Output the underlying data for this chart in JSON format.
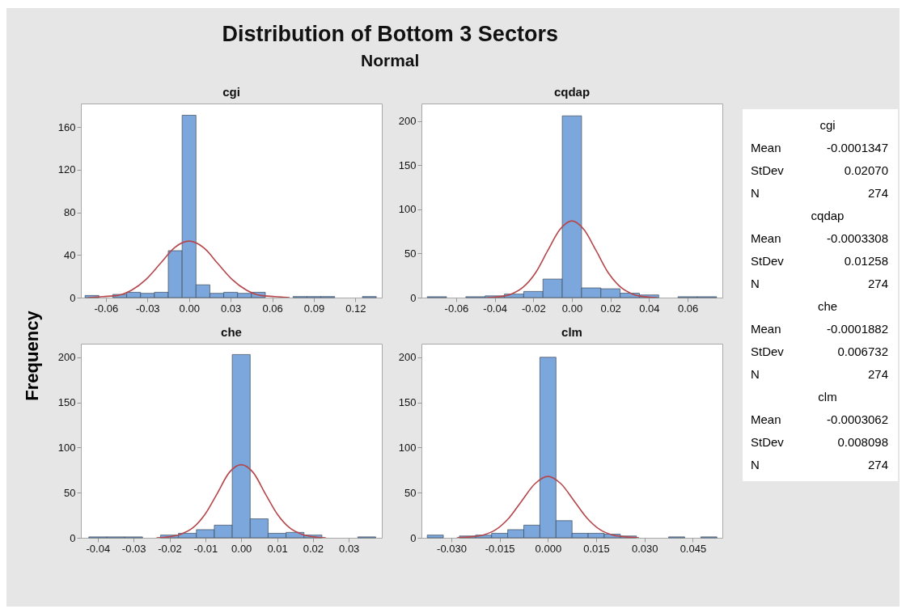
{
  "chart_data": [
    {
      "type": "other",
      "title": "Distribution of Bottom 3 Sectors",
      "subtitle": "Normal",
      "ylabel": "Frequency",
      "annotations": [
        "cgi",
        "Mean",
        "-0.0001347",
        "StDev",
        "0.02070",
        "N",
        "274",
        "cqdap",
        "Mean",
        "-0.0003308",
        "StDev",
        "0.01258",
        "N",
        "274",
        "che",
        "Mean",
        "-0.0001882",
        "StDev",
        "0.006732",
        "N",
        "274",
        "clm",
        "Mean",
        "-0.0003062",
        "StDev",
        "0.008098",
        "N",
        "274"
      ]
    },
    {
      "type": "histogram",
      "title": "cgi",
      "color": "#7ba7dc",
      "bins": [
        -0.075,
        -0.065,
        -0.055,
        -0.045,
        -0.035,
        -0.025,
        -0.015,
        -0.005,
        0.005,
        0.015,
        0.025,
        0.035,
        0.045,
        0.055,
        0.065,
        0.075,
        0.085,
        0.095,
        0.105,
        0.115,
        0.125,
        0.135
      ],
      "values": [
        2,
        0,
        3,
        5,
        4,
        5,
        44,
        171,
        12,
        4,
        5,
        4,
        5,
        0,
        0,
        1,
        1,
        1,
        0,
        0,
        1
      ],
      "series": [
        {
          "type": "line",
          "color": "#b5474c",
          "x": [
            -0.0725,
            -0.0621,
            -0.0518,
            -0.0414,
            -0.0311,
            -0.0207,
            -0.0104,
            0,
            0.0104,
            0.0207,
            0.0311,
            0.0414,
            0.0518,
            0.0621,
            0.0725
          ],
          "values": [
            0,
            1,
            2,
            7,
            17,
            32,
            47,
            53,
            47,
            32,
            17,
            7,
            2,
            1,
            0
          ]
        }
      ],
      "xlim": [
        -0.078,
        0.139
      ],
      "xticks": [
        -0.06,
        -0.03,
        {
          "value": 0,
          "label": "0.00"
        },
        0.03,
        0.06,
        0.09,
        0.12
      ],
      "ylim": [
        0,
        182
      ],
      "yticks": [
        0,
        40,
        80,
        120,
        160
      ]
    },
    {
      "type": "histogram",
      "title": "cqdap",
      "color": "#7ba7dc",
      "bins": [
        -0.075,
        -0.065,
        -0.055,
        -0.045,
        -0.035,
        -0.025,
        -0.015,
        -0.005,
        0.005,
        0.015,
        0.025,
        0.035,
        0.045,
        0.055,
        0.065,
        0.075
      ],
      "values": [
        1,
        0,
        1,
        2,
        4,
        7,
        21,
        206,
        11,
        10,
        5,
        3,
        0,
        1,
        1
      ],
      "series": [
        {
          "type": "line",
          "color": "#b5474c",
          "x": [
            -0.044,
            -0.0377,
            -0.0315,
            -0.0252,
            -0.0189,
            -0.0126,
            -0.0063,
            0,
            0.0063,
            0.0126,
            0.0189,
            0.0252,
            0.0315,
            0.0377,
            0.044
          ],
          "values": [
            0,
            1,
            4,
            12,
            28,
            53,
            77,
            87,
            77,
            53,
            28,
            12,
            4,
            1,
            0
          ]
        }
      ],
      "xlim": [
        -0.078,
        0.078
      ],
      "xticks": [
        -0.06,
        -0.04,
        -0.02,
        {
          "value": 0,
          "label": "0.00"
        },
        0.02,
        0.04,
        0.06
      ],
      "ylim": [
        0,
        220
      ],
      "yticks": [
        0,
        50,
        100,
        150,
        200
      ]
    },
    {
      "type": "histogram",
      "title": "che",
      "color": "#7ba7dc",
      "bins": [
        -0.0425,
        -0.0375,
        -0.0325,
        -0.0275,
        -0.0225,
        -0.0175,
        -0.0125,
        -0.0075,
        -0.0025,
        0.0025,
        0.0075,
        0.0125,
        0.0175,
        0.0225,
        0.0275,
        0.0325,
        0.0375
      ],
      "values": [
        1,
        1,
        1,
        0,
        3,
        5,
        9,
        14,
        203,
        21,
        5,
        6,
        3,
        0,
        0,
        1
      ],
      "series": [
        {
          "type": "line",
          "color": "#b5474c",
          "x": [
            -0.0236,
            -0.0202,
            -0.0168,
            -0.0135,
            -0.0101,
            -0.0067,
            -0.0034,
            0,
            0.0034,
            0.0067,
            0.0101,
            0.0135,
            0.0168,
            0.0202,
            0.0236
          ],
          "values": [
            0,
            1,
            4,
            11,
            26,
            49,
            72,
            81,
            72,
            49,
            26,
            11,
            4,
            1,
            0
          ]
        }
      ],
      "xlim": [
        -0.0447,
        0.0392
      ],
      "xticks": [
        -0.04,
        -0.03,
        -0.02,
        -0.01,
        {
          "value": 0,
          "label": "0.00"
        },
        0.01,
        0.02,
        0.03
      ],
      "ylim": [
        0,
        215
      ],
      "yticks": [
        0,
        50,
        100,
        150,
        200
      ]
    },
    {
      "type": "histogram",
      "title": "clm",
      "color": "#7ba7dc",
      "bins": [
        -0.0375,
        -0.0325,
        -0.0275,
        -0.0225,
        -0.0175,
        -0.0125,
        -0.0075,
        -0.0025,
        0.0025,
        0.0075,
        0.0125,
        0.0175,
        0.0225,
        0.0275,
        0.0325,
        0.0375,
        0.0425,
        0.0475,
        0.0525
      ],
      "values": [
        3,
        0,
        2,
        3,
        5,
        9,
        14,
        200,
        19,
        5,
        5,
        4,
        2,
        0,
        0,
        1,
        0,
        1
      ],
      "series": [
        {
          "type": "line",
          "color": "#b5474c",
          "x": [
            -0.0283,
            -0.0243,
            -0.0202,
            -0.0162,
            -0.0121,
            -0.0081,
            -0.004,
            0,
            0.004,
            0.0081,
            0.0121,
            0.0162,
            0.0202,
            0.0243,
            0.0283
          ],
          "values": [
            0,
            1,
            3,
            9,
            22,
            41,
            60,
            68,
            60,
            41,
            22,
            9,
            3,
            1,
            0
          ]
        }
      ],
      "xlim": [
        -0.0393,
        0.0542
      ],
      "xticks": [
        {
          "value": -0.03,
          "label": "-0.030"
        },
        -0.015,
        {
          "value": 0,
          "label": "0.000"
        },
        0.015,
        {
          "value": 0.03,
          "label": "0.030"
        },
        0.045
      ],
      "ylim": [
        0,
        215
      ],
      "yticks": [
        0,
        50,
        100,
        150,
        200
      ]
    }
  ]
}
